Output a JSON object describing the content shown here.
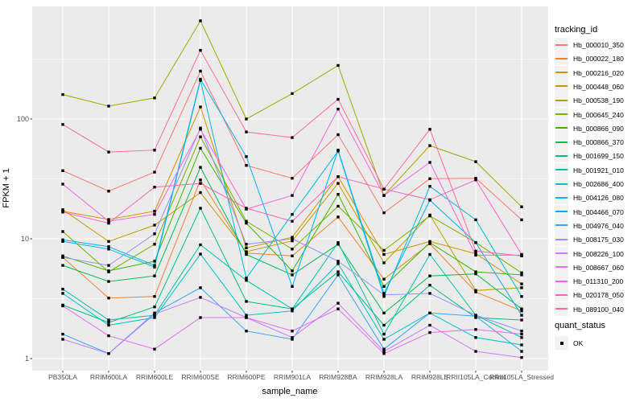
{
  "chart_data": {
    "type": "line",
    "title": "",
    "xlabel": "sample_name",
    "ylabel": "FPKM + 1",
    "y_scale": "log10",
    "grid": true,
    "legend_position": "right",
    "legend_color_title": "tracking_id",
    "legend_shape_title": "quant_status",
    "quant_status_values": [
      "OK"
    ],
    "x_categories": [
      "PB350LA",
      "RRIM600LA",
      "RRIM600LE",
      "RRIM600SE",
      "RRIM600PE",
      "RRIM901LA",
      "RRIM928BA",
      "RRIM928LA",
      "RRIM928LE",
      "RRII105LA_Control",
      "RRII105LA_Stressed"
    ],
    "y_ticks": [
      1,
      10,
      100
    ],
    "y_minor_ticks": [
      3.162,
      31.62,
      316.2
    ],
    "ylim": [
      0.78,
      870
    ],
    "colors": {
      "panel_bg": "#EBEBEB",
      "grid": "#FFFFFF",
      "point": "#000000",
      "tick": "#333333",
      "tick_label": "#4D4D4D",
      "key_bg": "#F2F2F2"
    },
    "series": [
      {
        "name": "Hb_000010_350",
        "color": "#F8766D",
        "values": [
          37,
          25,
          36,
          251,
          41,
          32,
          74,
          16.5,
          31.7,
          32,
          14.4
        ]
      },
      {
        "name": "Hb_000022_180",
        "color": "#EA8331",
        "values": [
          7.0,
          3.2,
          3.3,
          31,
          7.6,
          7.2,
          15.2,
          4.6,
          9.1,
          3.6,
          2.5
        ]
      },
      {
        "name": "Hb_000216_020",
        "color": "#D89000",
        "values": [
          17,
          14.5,
          17,
          126,
          8.4,
          10.3,
          33,
          7.4,
          9.5,
          7.5,
          4.2
        ]
      },
      {
        "name": "Hb_000448_060",
        "color": "#C09B00",
        "values": [
          17.5,
          9.5,
          13,
          24.3,
          7.8,
          9.6,
          29,
          6.3,
          15.8,
          3.7,
          3.9
        ]
      },
      {
        "name": "Hb_000538_190",
        "color": "#A3A500",
        "values": [
          160,
          128,
          150,
          660,
          100,
          163,
          280,
          23,
          60,
          44,
          18.5
        ]
      },
      {
        "name": "Hb_000645_240",
        "color": "#7CAE00",
        "values": [
          11.5,
          5.3,
          9.0,
          71,
          14.0,
          8.2,
          18.7,
          8.0,
          15.5,
          9.3,
          5.2
        ]
      },
      {
        "name": "Hb_000866_090",
        "color": "#39B600",
        "values": [
          7.2,
          5.4,
          6.5,
          57,
          13.5,
          5.4,
          23.5,
          4.0,
          9.3,
          5.3,
          5.0
        ]
      },
      {
        "name": "Hb_000866_370",
        "color": "#00BB4E",
        "values": [
          6.0,
          4.4,
          4.9,
          39.5,
          7.4,
          5.0,
          9.0,
          2.4,
          4.9,
          5.1,
          2.6
        ]
      },
      {
        "name": "Hb_001699_150",
        "color": "#00BF7D",
        "values": [
          2.8,
          2.0,
          2.7,
          18,
          3.0,
          2.6,
          5.3,
          1.9,
          4.1,
          2.2,
          2.1
        ]
      },
      {
        "name": "Hb_001921_010",
        "color": "#00C1A3",
        "values": [
          3.8,
          2.1,
          2.3,
          8.9,
          4.5,
          2.6,
          9.3,
          1.6,
          7.4,
          2.3,
          1.5
        ]
      },
      {
        "name": "Hb_002686_400",
        "color": "#00BFC4",
        "values": [
          3.5,
          1.9,
          2.2,
          7.45,
          2.3,
          2.5,
          6.2,
          1.45,
          2.4,
          1.5,
          1.3
        ]
      },
      {
        "name": "Hb_004126_080",
        "color": "#00BADE",
        "values": [
          9.5,
          8.2,
          5.8,
          210,
          4.7,
          16,
          54,
          3.3,
          27.4,
          14.4,
          3.3
        ]
      },
      {
        "name": "Hb_004466_070",
        "color": "#00B0F6",
        "values": [
          9.8,
          8.6,
          6.0,
          215,
          48.5,
          4.0,
          55,
          3.5,
          21,
          9.3,
          2.3
        ]
      },
      {
        "name": "Hb_004976_040",
        "color": "#35A2FF",
        "values": [
          1.6,
          1.1,
          2.4,
          3.9,
          1.7,
          1.45,
          5.0,
          1.2,
          2.4,
          2.26,
          1.15
        ]
      },
      {
        "name": "Hb_008175_030",
        "color": "#9590FF",
        "values": [
          7.0,
          6.0,
          11,
          84,
          9.0,
          10.0,
          6.5,
          3.4,
          3.5,
          2.3,
          1.7
        ]
      },
      {
        "name": "Hb_008226_100",
        "color": "#C77CFF",
        "values": [
          1.45,
          1.1,
          2.35,
          3.24,
          2.2,
          1.5,
          2.9,
          1.15,
          1.9,
          1.15,
          1.02
        ]
      },
      {
        "name": "Hb_008667_060",
        "color": "#E76BF3",
        "values": [
          2.75,
          1.55,
          1.2,
          2.2,
          2.2,
          1.7,
          2.6,
          1.1,
          1.65,
          1.75,
          1.6
        ]
      },
      {
        "name": "Hb_011310_200",
        "color": "#FA62DB",
        "values": [
          28.6,
          14,
          16,
          82,
          17.7,
          23,
          121,
          23,
          43.4,
          7.3,
          7.3
        ]
      },
      {
        "name": "Hb_020178_050",
        "color": "#FF62BC",
        "values": [
          16.7,
          13.5,
          27,
          29,
          18,
          14,
          33,
          26,
          21.2,
          31,
          7.4
        ]
      },
      {
        "name": "Hb_089100_040",
        "color": "#FF6A98",
        "values": [
          90,
          53,
          55,
          374,
          78,
          70,
          146,
          26,
          82,
          7.9,
          7.2
        ]
      }
    ]
  }
}
